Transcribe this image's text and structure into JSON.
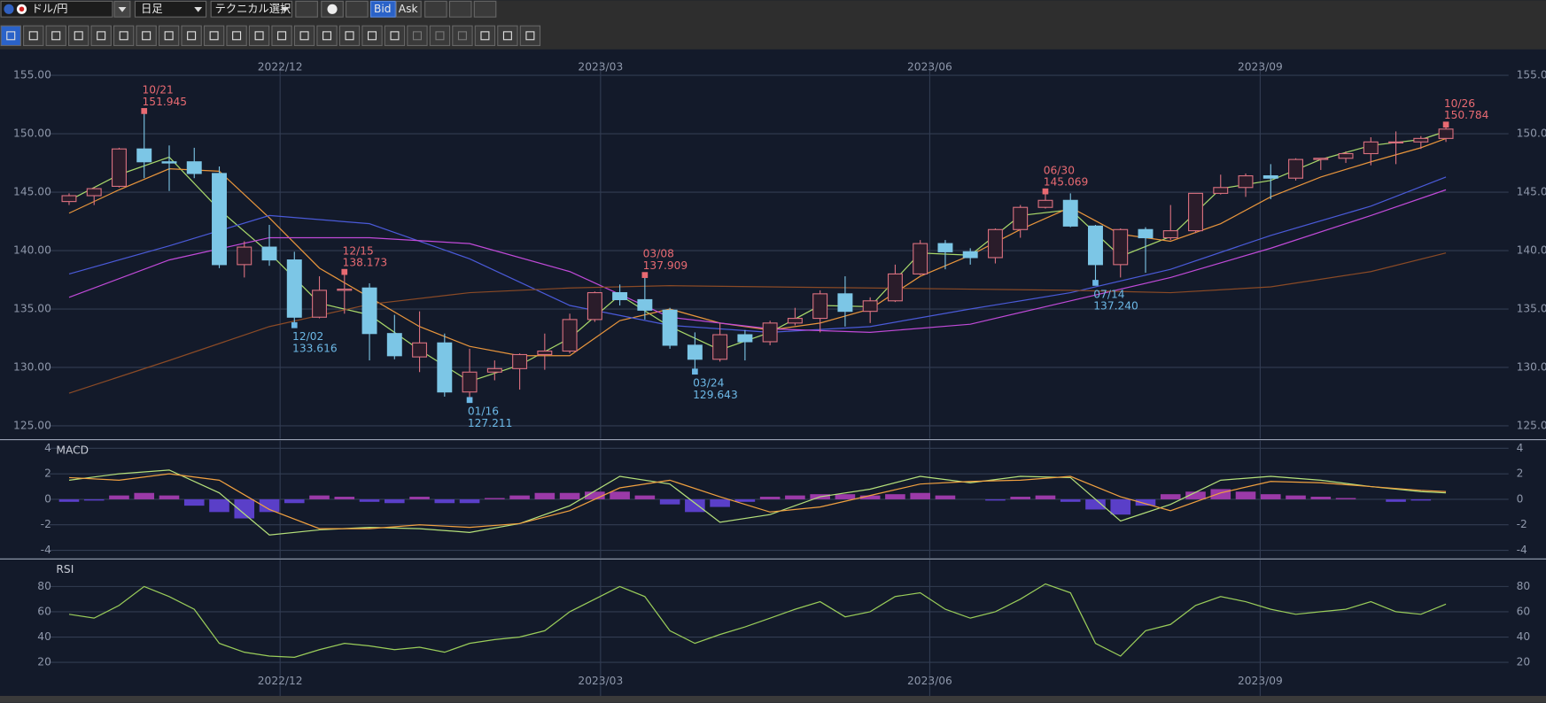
{
  "toolbar": {
    "symbol": "ドル/円",
    "period": "日足",
    "technical": "テクニカル選択",
    "bid": "Bid",
    "ask": "Ask"
  },
  "chart_data": [
    {
      "type": "candlestick",
      "x": [
        0,
        1,
        2,
        3,
        4,
        5,
        6,
        7,
        8,
        9,
        10,
        11,
        12,
        13,
        14,
        15,
        16,
        17,
        18,
        19,
        20,
        21,
        22,
        23,
        24,
        25,
        26,
        27,
        28,
        29,
        30,
        31,
        32,
        33,
        34,
        35,
        36,
        37,
        38,
        39,
        40,
        41,
        42,
        43,
        44,
        45,
        46,
        47,
        48,
        49,
        50,
        51,
        52,
        53,
        54,
        55
      ],
      "open": [
        144.2,
        144.7,
        145.5,
        148.7,
        147.6,
        147.6,
        146.6,
        138.8,
        140.3,
        139.2,
        134.3,
        136.6,
        136.8,
        132.9,
        130.9,
        132.1,
        127.9,
        129.6,
        129.9,
        131.1,
        131.4,
        134.1,
        136.4,
        135.8,
        134.9,
        131.9,
        130.7,
        132.8,
        132.2,
        133.8,
        134.2,
        136.3,
        134.8,
        135.7,
        138.0,
        140.6,
        139.9,
        139.4,
        141.8,
        143.7,
        144.3,
        142.1,
        138.8,
        141.8,
        141.1,
        141.7,
        144.9,
        145.4,
        146.4,
        146.2,
        147.8,
        147.9,
        148.3,
        149.3,
        149.3,
        149.6
      ],
      "high": [
        144.9,
        145.4,
        148.8,
        151.945,
        149.0,
        148.8,
        147.2,
        140.8,
        142.2,
        139.9,
        137.8,
        138.173,
        137.2,
        134.5,
        134.8,
        132.9,
        131.6,
        130.6,
        131.2,
        132.9,
        134.6,
        136.5,
        137.1,
        137.909,
        135.1,
        133.0,
        133.8,
        133.2,
        134.0,
        135.1,
        136.6,
        137.8,
        136.0,
        138.8,
        140.9,
        140.9,
        140.2,
        141.9,
        143.9,
        145.069,
        144.9,
        142.2,
        141.9,
        142.0,
        143.9,
        144.9,
        146.5,
        146.6,
        147.4,
        147.9,
        147.9,
        148.5,
        149.7,
        150.2,
        149.8,
        150.784
      ],
      "low": [
        143.9,
        143.9,
        145.4,
        146.2,
        145.1,
        146.2,
        138.5,
        137.7,
        138.7,
        133.616,
        134.2,
        134.6,
        130.6,
        130.7,
        129.6,
        127.5,
        127.211,
        128.9,
        128.1,
        129.8,
        131.2,
        133.9,
        135.3,
        134.1,
        131.6,
        129.643,
        130.5,
        130.6,
        131.9,
        133.6,
        133.0,
        133.5,
        133.8,
        135.6,
        137.9,
        138.4,
        138.8,
        138.9,
        141.1,
        143.6,
        142.0,
        137.24,
        137.7,
        138.1,
        140.9,
        141.5,
        144.8,
        144.6,
        144.4,
        146.0,
        146.9,
        147.5,
        147.3,
        147.4,
        148.7,
        149.3
      ],
      "close": [
        144.7,
        145.3,
        148.7,
        147.6,
        147.5,
        146.6,
        138.8,
        140.3,
        139.2,
        134.3,
        136.6,
        136.7,
        132.9,
        131.0,
        132.1,
        127.9,
        129.6,
        129.9,
        131.1,
        131.4,
        134.1,
        136.4,
        135.8,
        134.9,
        131.9,
        130.7,
        132.8,
        132.2,
        133.8,
        134.2,
        136.3,
        134.8,
        135.7,
        138.0,
        140.6,
        139.9,
        139.4,
        141.8,
        143.7,
        144.3,
        142.1,
        138.8,
        141.8,
        141.1,
        141.7,
        144.9,
        145.4,
        146.4,
        146.2,
        147.8,
        147.9,
        148.3,
        149.3,
        149.3,
        149.6,
        150.4
      ],
      "up_color": "#d9707f",
      "down_color": "#7cc6e6",
      "lines": [
        {
          "color": "#a8d86a",
          "x": [
            0,
            2,
            4,
            6,
            8,
            10,
            12,
            14,
            16,
            18,
            20,
            22,
            24,
            26,
            28,
            30,
            32,
            34,
            36,
            38,
            40,
            42,
            44,
            46,
            48,
            50,
            52,
            54,
            55
          ],
          "values": [
            144.3,
            146.5,
            148.0,
            143.5,
            139.8,
            135.5,
            134.5,
            131.5,
            128.8,
            130.2,
            132.5,
            136.2,
            133.5,
            131.5,
            133.0,
            135.3,
            135.2,
            139.8,
            139.6,
            143.0,
            143.5,
            139.5,
            141.2,
            145.3,
            146.0,
            147.8,
            149.0,
            149.5,
            150.2
          ]
        },
        {
          "color": "#e8953c",
          "x": [
            0,
            2,
            4,
            6,
            8,
            10,
            12,
            14,
            16,
            18,
            20,
            22,
            24,
            26,
            28,
            30,
            32,
            34,
            36,
            38,
            40,
            42,
            44,
            46,
            48,
            50,
            52,
            54,
            55
          ],
          "values": [
            143.2,
            145.2,
            147.0,
            146.8,
            142.8,
            138.5,
            136.0,
            133.5,
            131.8,
            131.0,
            131.0,
            134.0,
            135.0,
            133.8,
            133.2,
            133.8,
            135.0,
            137.8,
            139.6,
            141.8,
            143.7,
            141.4,
            140.8,
            142.3,
            144.6,
            146.3,
            147.6,
            148.8,
            149.6
          ]
        },
        {
          "color": "#4a5ad8",
          "x": [
            0,
            4,
            8,
            12,
            16,
            20,
            24,
            28,
            32,
            36,
            40,
            44,
            48,
            52,
            55
          ],
          "values": [
            138.0,
            140.4,
            143.0,
            142.3,
            139.3,
            135.3,
            133.6,
            133.0,
            133.5,
            135.0,
            136.4,
            138.4,
            141.3,
            143.8,
            146.3
          ]
        },
        {
          "color": "#c04ad8",
          "x": [
            0,
            4,
            8,
            12,
            16,
            20,
            24,
            28,
            32,
            36,
            40,
            44,
            48,
            52,
            55
          ],
          "values": [
            136.0,
            139.2,
            141.1,
            141.1,
            140.6,
            138.2,
            134.3,
            133.3,
            133.0,
            133.7,
            135.7,
            137.7,
            140.2,
            143.0,
            145.2
          ]
        },
        {
          "color": "#8a4a26",
          "x": [
            0,
            4,
            8,
            12,
            16,
            20,
            24,
            28,
            32,
            36,
            40,
            44,
            48,
            52,
            55
          ],
          "values": [
            127.8,
            130.6,
            133.5,
            135.4,
            136.4,
            136.8,
            137.0,
            136.9,
            136.8,
            136.7,
            136.6,
            136.4,
            136.9,
            138.2,
            139.8
          ]
        }
      ],
      "annotations": [
        {
          "date": "10/21",
          "value": 151.945,
          "value_label": "151.945",
          "x": 3,
          "kind": "high"
        },
        {
          "date": "12/02",
          "value": 133.616,
          "value_label": "133.616",
          "x": 9,
          "kind": "low"
        },
        {
          "date": "12/15",
          "value": 138.173,
          "value_label": "138.173",
          "x": 11,
          "kind": "high"
        },
        {
          "date": "01/16",
          "value": 127.211,
          "value_label": "127.211",
          "x": 16,
          "kind": "low"
        },
        {
          "date": "03/08",
          "value": 137.909,
          "value_label": "137.909",
          "x": 23,
          "kind": "high"
        },
        {
          "date": "03/24",
          "value": 129.643,
          "value_label": "129.643",
          "x": 25,
          "kind": "low"
        },
        {
          "date": "06/30",
          "value": 145.069,
          "value_label": "145.069",
          "x": 39,
          "kind": "high"
        },
        {
          "date": "07/14",
          "value": 137.24,
          "value_label": "137.240",
          "x": 41,
          "kind": "low"
        },
        {
          "date": "10/26",
          "value": 150.784,
          "value_label": "150.784",
          "x": 55,
          "kind": "high"
        }
      ],
      "high_color": "#e86a72",
      "low_color": "#6cb8e6",
      "xlim": [
        -0.79,
        57.5
      ],
      "xticks": [
        {
          "value": 8.43,
          "label": "2022/12"
        },
        {
          "value": 21.23,
          "label": "2023/03"
        },
        {
          "value": 34.38,
          "label": "2023/06"
        },
        {
          "value": 47.58,
          "label": "2023/09"
        }
      ],
      "xtick_position": "top",
      "ylim": [
        123.9,
        156.2
      ],
      "yticks": [
        {
          "value": 125,
          "label": "125.00"
        },
        {
          "value": 130,
          "label": "130.00"
        },
        {
          "value": 135,
          "label": "135.00"
        },
        {
          "value": 140,
          "label": "140.00"
        },
        {
          "value": 145,
          "label": "145.00"
        },
        {
          "value": 150,
          "label": "150.00"
        },
        {
          "value": 155,
          "label": "155.00"
        }
      ],
      "grid": true
    },
    {
      "type": "macd",
      "title": "MACD",
      "x": [
        0,
        1,
        2,
        3,
        4,
        5,
        6,
        7,
        8,
        9,
        10,
        11,
        12,
        13,
        14,
        15,
        16,
        17,
        18,
        19,
        20,
        21,
        22,
        23,
        24,
        25,
        26,
        27,
        28,
        29,
        30,
        31,
        32,
        33,
        34,
        35,
        36,
        37,
        38,
        39,
        40,
        41,
        42,
        43,
        44,
        45,
        46,
        47,
        48,
        49,
        50,
        51,
        52,
        53,
        54,
        55
      ],
      "histogram": {
        "color": "#9b3aa8",
        "negative_color": "#5a3fc8",
        "values": [
          -0.2,
          -0.1,
          0.3,
          0.5,
          0.3,
          -0.5,
          -1.0,
          -1.5,
          -1.0,
          -0.3,
          0.3,
          0.2,
          -0.2,
          -0.3,
          0.2,
          -0.3,
          -0.3,
          0.1,
          0.3,
          0.5,
          0.5,
          0.6,
          0.6,
          0.3,
          -0.4,
          -1.0,
          -0.6,
          -0.2,
          0.2,
          0.3,
          0.4,
          0.4,
          0.3,
          0.4,
          0.5,
          0.3,
          0,
          -0.1,
          0.2,
          0.3,
          -0.2,
          -0.8,
          -1.2,
          -0.5,
          0.4,
          0.6,
          0.8,
          0.6,
          0.4,
          0.3,
          0.2,
          0.1,
          0,
          -0.2,
          -0.1,
          0
        ]
      },
      "lines": [
        {
          "color": "#b5e07a",
          "x": [
            0,
            2,
            4,
            6,
            8,
            10,
            12,
            14,
            16,
            18,
            20,
            22,
            24,
            26,
            28,
            30,
            32,
            34,
            36,
            38,
            40,
            42,
            44,
            46,
            48,
            50,
            52,
            54,
            55
          ],
          "values": [
            1.5,
            2.0,
            2.3,
            0.5,
            -2.8,
            -2.4,
            -2.2,
            -2.3,
            -2.6,
            -1.9,
            -0.5,
            1.8,
            1.2,
            -1.8,
            -1.2,
            0.2,
            0.8,
            1.8,
            1.3,
            1.8,
            1.7,
            -1.7,
            -0.4,
            1.5,
            1.8,
            1.5,
            1.0,
            0.6,
            0.5
          ]
        },
        {
          "color": "#f0a040",
          "x": [
            0,
            2,
            4,
            6,
            8,
            10,
            12,
            14,
            16,
            18,
            20,
            22,
            24,
            26,
            28,
            30,
            32,
            34,
            36,
            38,
            40,
            42,
            44,
            46,
            48,
            50,
            52,
            54,
            55
          ],
          "values": [
            1.7,
            1.5,
            2.0,
            1.5,
            -0.8,
            -2.3,
            -2.3,
            -2.0,
            -2.2,
            -1.9,
            -0.9,
            0.9,
            1.5,
            0.2,
            -1.0,
            -0.6,
            0.3,
            1.2,
            1.4,
            1.5,
            1.8,
            0.2,
            -0.9,
            0.5,
            1.4,
            1.3,
            1.0,
            0.7,
            0.6
          ]
        }
      ],
      "xlim": [
        -0.79,
        57.5
      ],
      "ylim": [
        -4.6,
        4.6
      ],
      "yticks": [
        -4,
        -2,
        0,
        2,
        4
      ],
      "grid": true
    },
    {
      "type": "line",
      "title": "RSI",
      "x": [
        0,
        1,
        2,
        3,
        4,
        5,
        6,
        7,
        8,
        9,
        10,
        11,
        12,
        13,
        14,
        15,
        16,
        17,
        18,
        19,
        20,
        21,
        22,
        23,
        24,
        25,
        26,
        27,
        28,
        29,
        30,
        31,
        32,
        33,
        34,
        35,
        36,
        37,
        38,
        39,
        40,
        41,
        42,
        43,
        44,
        45,
        46,
        47,
        48,
        49,
        50,
        51,
        52,
        53,
        54,
        55
      ],
      "lines": [
        {
          "color": "#9acd5a",
          "values": [
            58,
            55,
            65,
            80,
            72,
            62,
            35,
            28,
            25,
            24,
            30,
            35,
            33,
            30,
            32,
            28,
            35,
            38,
            40,
            45,
            60,
            70,
            80,
            72,
            45,
            35,
            42,
            48,
            55,
            62,
            68,
            56,
            60,
            72,
            75,
            62,
            55,
            60,
            70,
            82,
            75,
            35,
            25,
            45,
            50,
            65,
            72,
            68,
            62,
            58,
            60,
            62,
            68,
            60,
            58,
            66
          ]
        }
      ],
      "xlim": [
        -0.79,
        57.5
      ],
      "xticks": [
        {
          "value": 8.43,
          "label": "2022/12"
        },
        {
          "value": 21.23,
          "label": "2023/03"
        },
        {
          "value": 34.38,
          "label": "2023/06"
        },
        {
          "value": 47.58,
          "label": "2023/09"
        }
      ],
      "xtick_position": "bottom",
      "ylim": [
        -6.5,
        101
      ],
      "yticks": [
        20,
        40,
        60,
        80
      ],
      "grid": true
    }
  ]
}
